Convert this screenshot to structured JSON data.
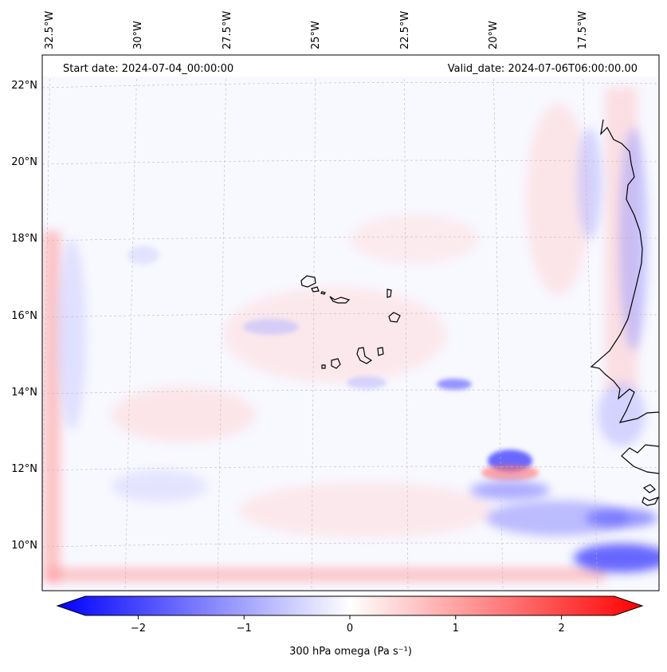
{
  "map": {
    "start_date": "Start date: 2024-07-04_00:00:00",
    "valid_date": "Valid_date: 2024-07-06T06:00:00.00",
    "lon_labels": [
      "32.5°W",
      "30°W",
      "27.5°W",
      "25°W",
      "22.5°W",
      "20°W",
      "17.5°W"
    ],
    "lat_labels": [
      "22°N",
      "20°N",
      "18°N",
      "16°N",
      "14°N",
      "12°N",
      "10°N"
    ]
  },
  "colorbar": {
    "label": "300 hPa omega (Pa s⁻¹)",
    "ticks": [
      "−2",
      "−1",
      "0",
      "1",
      "2"
    ],
    "tick_values": [
      -2,
      -1,
      0,
      1,
      2
    ],
    "range": [
      -2.75,
      2.75
    ],
    "colors": {
      "negative": "#0000ff",
      "zero": "#ffffff",
      "positive": "#ff0000"
    }
  },
  "features": {
    "coastline_color": "#000000",
    "grid_color": "#bbbbbb"
  }
}
